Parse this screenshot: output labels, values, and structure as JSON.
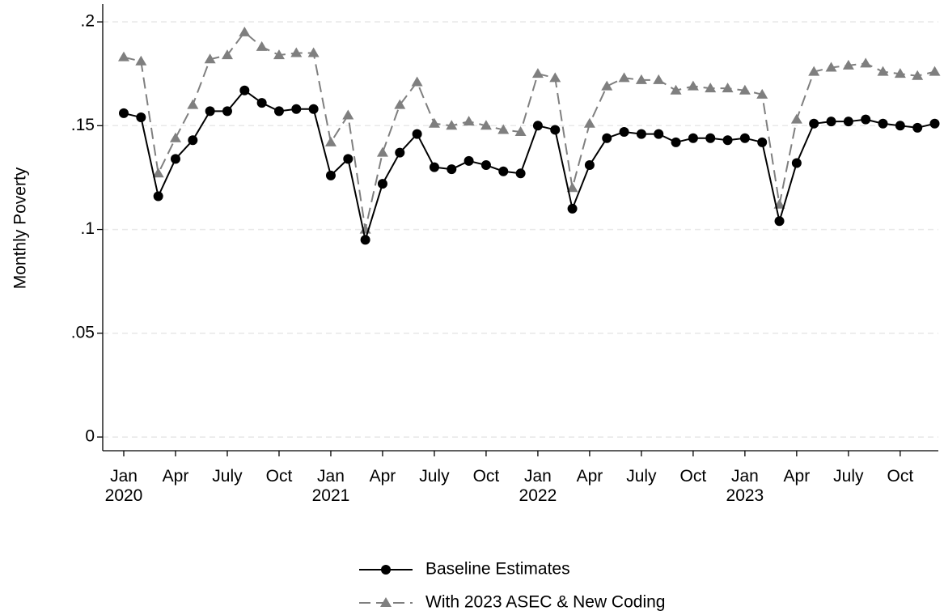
{
  "chart_data": {
    "type": "line",
    "y_label": "Monthly Poverty",
    "categories": [
      "Jan 2020",
      null,
      null,
      "Apr",
      null,
      null,
      "July",
      null,
      null,
      "Oct",
      null,
      null,
      "Jan 2021",
      null,
      null,
      "Apr",
      null,
      null,
      "July",
      null,
      null,
      "Oct",
      null,
      null,
      "Jan 2022",
      null,
      null,
      "Apr",
      null,
      null,
      "July",
      null,
      null,
      "Oct",
      null,
      null,
      "Jan 2023",
      null,
      null,
      "Apr",
      null,
      null,
      "July",
      null,
      null,
      "Oct",
      null,
      null
    ],
    "series": [
      {
        "name": "Baseline Estimates",
        "color": "#000000",
        "dash": false,
        "marker": "circle",
        "values": [
          0.156,
          0.154,
          0.116,
          0.134,
          0.143,
          0.157,
          0.157,
          0.167,
          0.161,
          0.157,
          0.158,
          0.158,
          0.126,
          0.134,
          0.095,
          0.122,
          0.137,
          0.146,
          0.13,
          0.129,
          0.133,
          0.131,
          0.128,
          0.127,
          0.15,
          0.148,
          0.11,
          0.131,
          0.144,
          0.147,
          0.146,
          0.146,
          0.142,
          0.144,
          0.144,
          0.143,
          0.144,
          0.142,
          0.104,
          0.132,
          0.151,
          0.152,
          0.152,
          0.153,
          0.151,
          0.15,
          0.149,
          0.151
        ]
      },
      {
        "name": "With 2023 ASEC & New Coding",
        "color": "#7f7f7f",
        "dash": true,
        "marker": "triangle",
        "values": [
          0.183,
          0.181,
          0.127,
          0.144,
          0.16,
          0.182,
          0.184,
          0.195,
          0.188,
          0.184,
          0.185,
          0.185,
          0.142,
          0.155,
          0.1,
          0.137,
          0.16,
          0.171,
          0.151,
          0.15,
          0.152,
          0.15,
          0.148,
          0.147,
          0.175,
          0.173,
          0.12,
          0.151,
          0.169,
          0.173,
          0.172,
          0.172,
          0.167,
          0.169,
          0.168,
          0.168,
          0.167,
          0.165,
          0.112,
          0.153,
          0.176,
          0.178,
          0.179,
          0.18,
          0.176,
          0.175,
          0.174,
          0.176
        ]
      }
    ],
    "ylim": [
      -0.0066,
      0.2086
    ],
    "yticks": [
      0,
      {
        "value": 0.05,
        "label": ".05"
      },
      {
        "value": 0.1,
        "label": ".1"
      },
      {
        "value": 0.15,
        "label": ".15"
      },
      {
        "value": 0.2,
        "label": ".2"
      }
    ],
    "grid": true,
    "legend": "bottom"
  }
}
